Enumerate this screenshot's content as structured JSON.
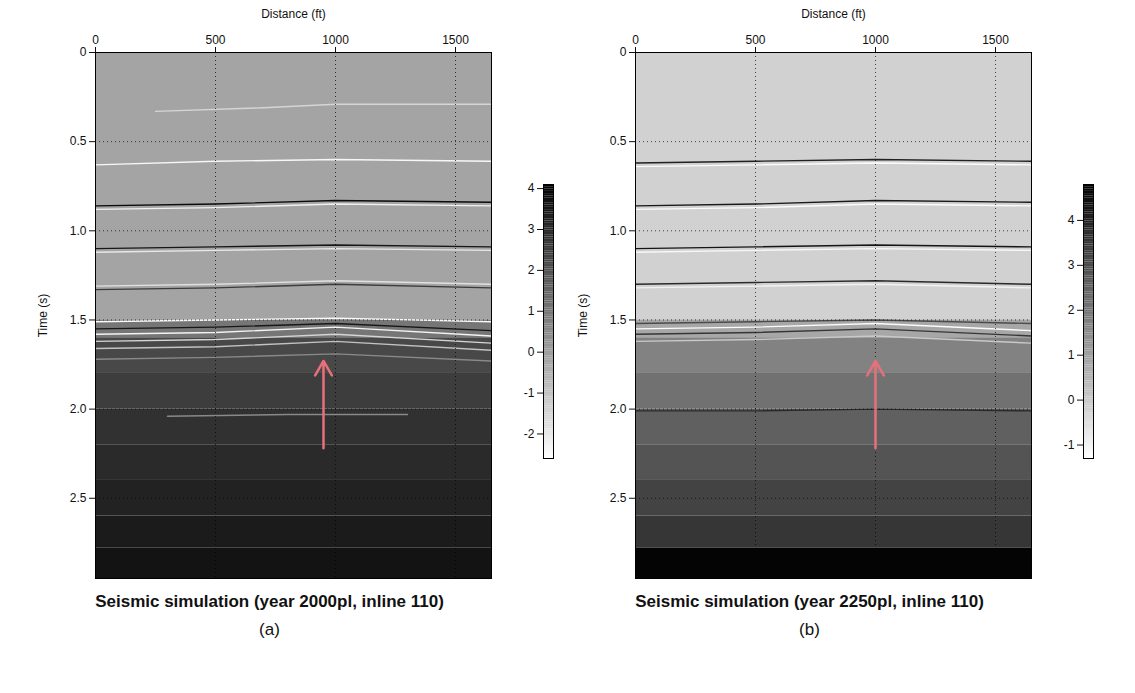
{
  "chart_data": [
    {
      "type": "heatmap",
      "title": "Seismic simulation (year 2000pl, inline 110)",
      "panel": "(a)",
      "x_label": "Distance (ft)",
      "y_label": "Time (s)",
      "xlim": [
        0,
        1650
      ],
      "xticks": [
        0,
        500,
        1000,
        1500
      ],
      "ylim": [
        0,
        2.95
      ],
      "yticks": [
        0,
        0.5,
        {
          "value": 1,
          "label": "1.0"
        },
        1.5,
        {
          "value": 2,
          "label": "2.0"
        },
        2.5
      ],
      "grid": true,
      "background": {
        "t": [
          0,
          1.5,
          1.6,
          1.8,
          2.0,
          2.2,
          2.4,
          2.6,
          2.78,
          2.95
        ],
        "values": [
          -0.2,
          1.0,
          2.2,
          2.5,
          2.8,
          3.0,
          3.2,
          3.4,
          3.6
        ]
      },
      "reflectors": [
        {
          "x": [
            250,
            700,
            1000,
            1650
          ],
          "t": [
            0.33,
            0.31,
            0.29,
            0.29
          ],
          "value": -1.5
        },
        {
          "x": [
            0,
            500,
            1000,
            1650
          ],
          "t": [
            0.63,
            0.61,
            0.6,
            0.61
          ],
          "value": -2.4
        },
        {
          "x": [
            0,
            500,
            1000,
            1650
          ],
          "t": [
            0.86,
            0.85,
            0.83,
            0.84
          ],
          "value": 3.8
        },
        {
          "x": [
            0,
            500,
            1000,
            1650
          ],
          "t": [
            0.88,
            0.87,
            0.85,
            0.86
          ],
          "value": -2.2
        },
        {
          "x": [
            0,
            500,
            1000,
            1650
          ],
          "t": [
            1.1,
            1.09,
            1.08,
            1.09
          ],
          "value": 3.5
        },
        {
          "x": [
            0,
            500,
            1000,
            1650
          ],
          "t": [
            1.12,
            1.11,
            1.1,
            1.11
          ],
          "value": -2.0
        },
        {
          "x": [
            0,
            500,
            1000,
            1650
          ],
          "t": [
            1.31,
            1.3,
            1.28,
            1.3
          ],
          "value": -1.8
        },
        {
          "x": [
            0,
            500,
            1000,
            1650
          ],
          "t": [
            1.33,
            1.32,
            1.3,
            1.32
          ],
          "value": 2.5
        },
        {
          "x": [
            0,
            500,
            1000,
            1650
          ],
          "t": [
            1.51,
            1.5,
            1.49,
            1.51
          ],
          "value": -2.5
        },
        {
          "x": [
            0,
            500,
            1000,
            1650
          ],
          "t": [
            1.55,
            1.54,
            1.52,
            1.56
          ],
          "value": 3.5
        },
        {
          "x": [
            0,
            500,
            1000,
            1650
          ],
          "t": [
            1.58,
            1.57,
            1.54,
            1.59
          ],
          "value": -2.3
        },
        {
          "x": [
            0,
            500,
            1000,
            1650
          ],
          "t": [
            1.62,
            1.61,
            1.58,
            1.63
          ],
          "value": -1.5
        },
        {
          "x": [
            0,
            500,
            1000,
            1650
          ],
          "t": [
            1.66,
            1.65,
            1.62,
            1.67
          ],
          "value": -1.0
        },
        {
          "x": [
            0,
            500,
            1000,
            1650
          ],
          "t": [
            1.72,
            1.71,
            1.69,
            1.73
          ],
          "value": 0.5
        },
        {
          "x": [
            300,
            800,
            1300
          ],
          "t": [
            2.04,
            2.03,
            2.03
          ],
          "value": 0.5
        }
      ],
      "arrow": {
        "x": 950,
        "t": [
          2.22,
          1.73
        ],
        "color": "#e8707a"
      },
      "colorbar": {
        "range": [
          -2.6,
          4.1
        ],
        "ticks": [
          -2,
          -1,
          0,
          1,
          2,
          3,
          4
        ]
      }
    },
    {
      "type": "heatmap",
      "title": "Seismic simulation (year 2250pl, inline 110)",
      "panel": "(b)",
      "x_label": "Distance (ft)",
      "y_label": "Time (s)",
      "xlim": [
        0,
        1650
      ],
      "xticks": [
        0,
        500,
        1000,
        1500
      ],
      "ylim": [
        0,
        2.95
      ],
      "yticks": [
        0,
        0.5,
        {
          "value": 1,
          "label": "1.0"
        },
        1.5,
        {
          "value": 2,
          "label": "2.0"
        },
        2.5
      ],
      "grid": true,
      "background": {
        "t": [
          0,
          1.5,
          1.6,
          1.8,
          2.0,
          2.2,
          2.4,
          2.6,
          2.78,
          2.95
        ],
        "values": [
          -0.2,
          0.8,
          1.7,
          2.1,
          2.5,
          2.8,
          3.2,
          3.5,
          4.7
        ]
      },
      "reflectors": [
        {
          "x": [
            0,
            500,
            1000,
            1650
          ],
          "t": [
            0.62,
            0.61,
            0.6,
            0.61
          ],
          "value": 4.0
        },
        {
          "x": [
            0,
            500,
            1000,
            1650
          ],
          "t": [
            0.64,
            0.63,
            0.62,
            0.63
          ],
          "value": -1.2
        },
        {
          "x": [
            0,
            500,
            1000,
            1650
          ],
          "t": [
            0.86,
            0.85,
            0.83,
            0.84
          ],
          "value": 4.2
        },
        {
          "x": [
            0,
            500,
            1000,
            1650
          ],
          "t": [
            0.88,
            0.87,
            0.85,
            0.86
          ],
          "value": -1.2
        },
        {
          "x": [
            0,
            500,
            1000,
            1650
          ],
          "t": [
            1.1,
            1.09,
            1.08,
            1.09
          ],
          "value": 4.3
        },
        {
          "x": [
            0,
            500,
            1000,
            1650
          ],
          "t": [
            1.12,
            1.11,
            1.1,
            1.11
          ],
          "value": -1.1
        },
        {
          "x": [
            0,
            500,
            1000,
            1650
          ],
          "t": [
            1.3,
            1.29,
            1.28,
            1.3
          ],
          "value": 3.8
        },
        {
          "x": [
            0,
            500,
            1000,
            1650
          ],
          "t": [
            1.32,
            1.31,
            1.3,
            1.32
          ],
          "value": -1.0
        },
        {
          "x": [
            0,
            500,
            1000,
            1650
          ],
          "t": [
            1.52,
            1.51,
            1.5,
            1.52
          ],
          "value": 3.0
        },
        {
          "x": [
            0,
            500,
            1000,
            1650
          ],
          "t": [
            1.55,
            1.54,
            1.52,
            1.56
          ],
          "value": -1.2
        },
        {
          "x": [
            0,
            500,
            1000,
            1650
          ],
          "t": [
            1.58,
            1.57,
            1.55,
            1.59
          ],
          "value": 3.5
        },
        {
          "x": [
            0,
            500,
            1000,
            1650
          ],
          "t": [
            1.62,
            1.61,
            1.59,
            1.63
          ],
          "value": 0.0
        },
        {
          "x": [
            0,
            500,
            1000,
            1650
          ],
          "t": [
            2.01,
            2.01,
            2.0,
            2.01
          ],
          "value": 3.8
        }
      ],
      "arrow": {
        "x": 1000,
        "t": [
          2.22,
          1.73
        ],
        "color": "#e8707a"
      },
      "colorbar": {
        "range": [
          -1.3,
          4.8
        ],
        "ticks": [
          -1,
          0,
          1,
          2,
          3,
          4
        ]
      }
    }
  ]
}
